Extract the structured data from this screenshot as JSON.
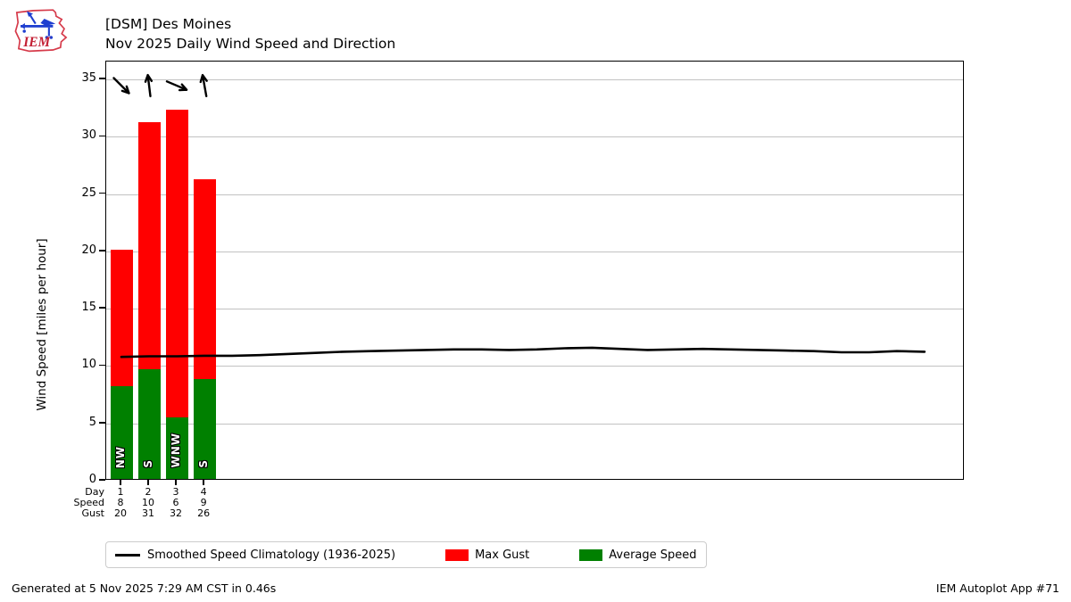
{
  "header": {
    "title_line1": "[DSM] Des Moines",
    "title_line2": "Nov 2025 Daily Wind Speed and Direction",
    "logo_text": "IEM"
  },
  "chart_data": {
    "type": "bar",
    "title": "Nov 2025 Daily Wind Speed and Direction",
    "ylabel": "Wind Speed [miles per hour]",
    "ylim": [
      0,
      36.56
    ],
    "yticks": [
      0,
      5,
      10,
      15,
      20,
      25,
      30,
      35
    ],
    "grid": true,
    "days_in_month": 30,
    "categories": [
      1,
      2,
      3,
      4
    ],
    "series": [
      {
        "name": "Max Gust",
        "color": "#ff0000",
        "values": [
          20.0,
          31.1,
          32.2,
          26.1
        ]
      },
      {
        "name": "Average Speed",
        "color": "#008000",
        "values": [
          8.1,
          9.6,
          5.4,
          8.7
        ]
      }
    ],
    "directions": [
      "NW",
      "S",
      "WNW",
      "S"
    ],
    "arrow_bearings_toward": [
      135,
      353,
      113,
      350
    ],
    "climatology": {
      "name": "Smoothed Speed Climatology (1936-2025)",
      "color": "#000000",
      "days": [
        1,
        2,
        3,
        4,
        5,
        6,
        7,
        8,
        9,
        10,
        11,
        12,
        13,
        14,
        15,
        16,
        17,
        18,
        19,
        20,
        21,
        22,
        23,
        24,
        25,
        26,
        27,
        28,
        29,
        30
      ],
      "values": [
        10.8,
        10.85,
        10.85,
        10.9,
        10.9,
        10.95,
        11.05,
        11.15,
        11.25,
        11.3,
        11.35,
        11.4,
        11.45,
        11.45,
        11.4,
        11.45,
        11.55,
        11.6,
        11.5,
        11.4,
        11.45,
        11.5,
        11.45,
        11.4,
        11.35,
        11.3,
        11.2,
        11.2,
        11.3,
        11.25
      ]
    }
  },
  "xtable": {
    "rows": [
      {
        "label": "Day",
        "values": [
          "1",
          "2",
          "3",
          "4"
        ]
      },
      {
        "label": "Speed",
        "values": [
          "8",
          "10",
          "6",
          "9"
        ]
      },
      {
        "label": "Gust",
        "values": [
          "20",
          "31",
          "32",
          "26"
        ]
      }
    ]
  },
  "legend": {
    "items": [
      {
        "label": "Smoothed Speed Climatology (1936-2025)",
        "swatch": "line",
        "color": "#000000"
      },
      {
        "label": "Max Gust",
        "swatch": "patch",
        "color": "#ff0000"
      },
      {
        "label": "Average Speed",
        "swatch": "patch",
        "color": "#008000"
      }
    ]
  },
  "footer": {
    "left": "Generated at 5 Nov 2025 7:29 AM CST in 0.46s",
    "right": "IEM Autoplot App #71"
  },
  "colors": {
    "max_gust": "#ff0000",
    "avg_speed": "#008000",
    "grid": "#c2c2c2",
    "logo_red": "#d63a4a",
    "logo_blue": "#1f3fd0"
  }
}
